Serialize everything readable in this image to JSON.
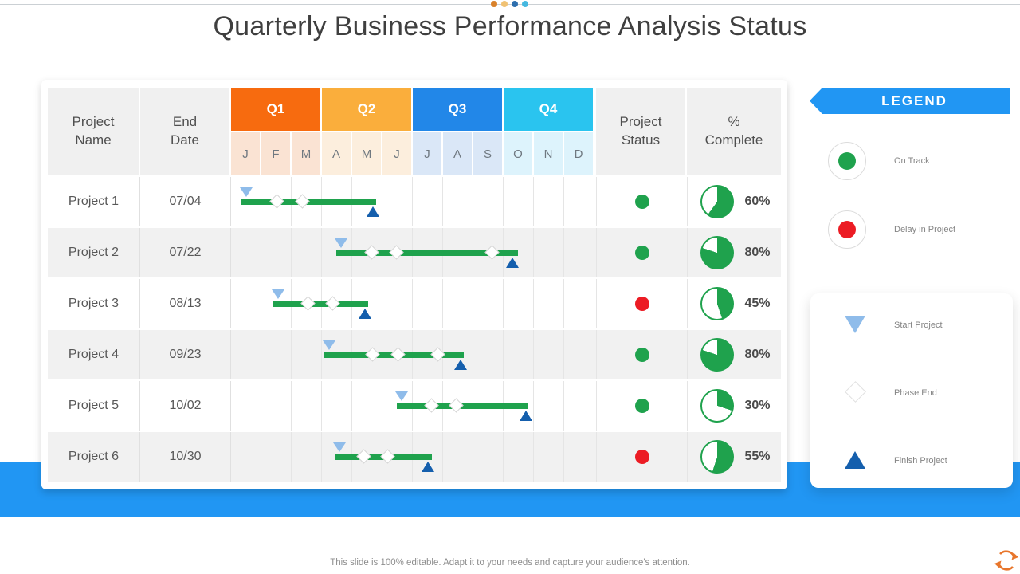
{
  "decoration": {
    "dot_colors": [
      "#D9822B",
      "#F0C274",
      "#2D6FAE",
      "#45B8E0"
    ]
  },
  "title": "Quarterly Business Performance Analysis Status",
  "table": {
    "headers": {
      "project_name": "Project Name",
      "end_date": "End Date",
      "project_status": "Project Status",
      "percent_complete": "% Complete"
    },
    "quarters": [
      {
        "label": "Q1",
        "color": "#F76B0F",
        "tint": "#FAE3D3",
        "months": [
          "J",
          "F",
          "M"
        ]
      },
      {
        "label": "Q2",
        "color": "#FAAE3C",
        "tint": "#FCEEDD",
        "months": [
          "A",
          "M",
          "J"
        ]
      },
      {
        "label": "Q3",
        "color": "#2287E8",
        "tint": "#DAE7F7",
        "months": [
          "J",
          "A",
          "S"
        ]
      },
      {
        "label": "Q4",
        "color": "#2AC4EF",
        "tint": "#DDF3FC",
        "months": [
          "O",
          "N",
          "D"
        ]
      }
    ]
  },
  "chart_data": {
    "type": "gantt",
    "timeline_months": [
      "J",
      "F",
      "M",
      "A",
      "M",
      "J",
      "J",
      "A",
      "S",
      "O",
      "N",
      "D"
    ],
    "quarters": [
      "Q1",
      "Q2",
      "Q3",
      "Q4"
    ],
    "projects": [
      {
        "name": "Project 1",
        "end_date": "07/04",
        "bar_start_month": 0.35,
        "bar_end_month": 4.8,
        "phase_end_markers": [
          1.53,
          2.37
        ],
        "finish_marker": 4.68,
        "status": "On Track",
        "percent_complete": 60
      },
      {
        "name": "Project 2",
        "end_date": "07/22",
        "bar_start_month": 3.48,
        "bar_end_month": 9.47,
        "phase_end_markers": [
          4.65,
          5.48,
          8.64
        ],
        "finish_marker": 9.3,
        "status": "On Track",
        "percent_complete": 80
      },
      {
        "name": "Project 3",
        "end_date": "08/13",
        "bar_start_month": 1.4,
        "bar_end_month": 4.52,
        "phase_end_markers": [
          2.54,
          3.38
        ],
        "finish_marker": 4.43,
        "status": "Delay in Project",
        "percent_complete": 45
      },
      {
        "name": "Project 4",
        "end_date": "09/23",
        "bar_start_month": 3.07,
        "bar_end_month": 7.68,
        "phase_end_markers": [
          4.69,
          5.53,
          6.84
        ],
        "finish_marker": 7.59,
        "status": "On Track",
        "percent_complete": 80
      },
      {
        "name": "Project 5",
        "end_date": "10/02",
        "bar_start_month": 5.48,
        "bar_end_month": 9.82,
        "phase_end_markers": [
          6.62,
          7.46
        ],
        "finish_marker": 9.74,
        "status": "On Track",
        "percent_complete": 30
      },
      {
        "name": "Project 6",
        "end_date": "10/30",
        "bar_start_month": 3.42,
        "bar_end_month": 6.62,
        "phase_end_markers": [
          4.39,
          5.18
        ],
        "finish_marker": 6.49,
        "status": "Delay in Project",
        "percent_complete": 55
      }
    ]
  },
  "legend": {
    "title": "LEGEND",
    "status_items": [
      {
        "label": "On Track",
        "color": "#1FA24D"
      },
      {
        "label": "Delay in Project",
        "color": "#EC1C24"
      }
    ],
    "marker_items": [
      {
        "label": "Start Project",
        "marker": "start-triangle"
      },
      {
        "label": "Phase End",
        "marker": "phase-diamond"
      },
      {
        "label": "Finish Project",
        "marker": "finish-triangle"
      }
    ]
  },
  "footer": {
    "note": "This slide is 100% editable. Adapt it to your needs and capture your audience's attention."
  },
  "colors": {
    "accent_blue": "#2196F3",
    "bar_green": "#1FA24D",
    "status_green": "#1FA24D",
    "status_red": "#EC1C24",
    "start_marker_blue": "#8FBCEA",
    "finish_marker_blue": "#155FAD",
    "row_alt_gray": "#F1F1F1",
    "refresh_icon_orange": "#E8762C"
  }
}
